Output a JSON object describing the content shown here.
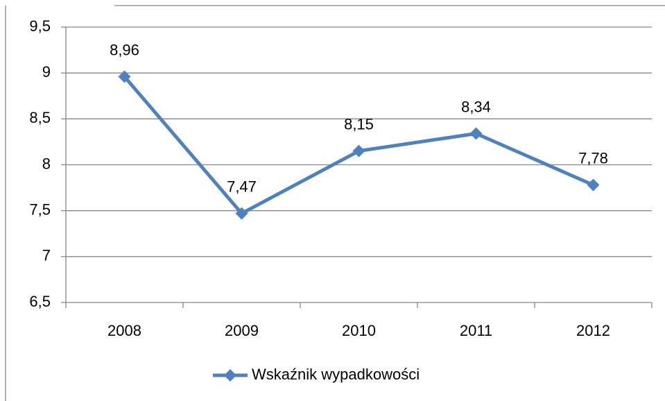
{
  "chart_data": {
    "type": "line",
    "categories": [
      "2008",
      "2009",
      "2010",
      "2011",
      "2012"
    ],
    "series": [
      {
        "name": "Wskaźnik wypadkowości",
        "color": "#4f81bd",
        "values": [
          8.96,
          7.47,
          8.15,
          8.34,
          7.78
        ],
        "value_labels": [
          "8,96",
          "7,47",
          "8,15",
          "8,34",
          "7,78"
        ]
      }
    ],
    "ylim": [
      6.5,
      9.5
    ],
    "yticks": [
      {
        "value": 6.5,
        "label": "6,5"
      },
      7,
      {
        "value": 7.5,
        "label": "7,5"
      },
      8,
      {
        "value": 8.5,
        "label": "8,5"
      },
      9,
      {
        "value": 9.5,
        "label": "9,5"
      }
    ],
    "grid": true,
    "legend": "bottom"
  }
}
